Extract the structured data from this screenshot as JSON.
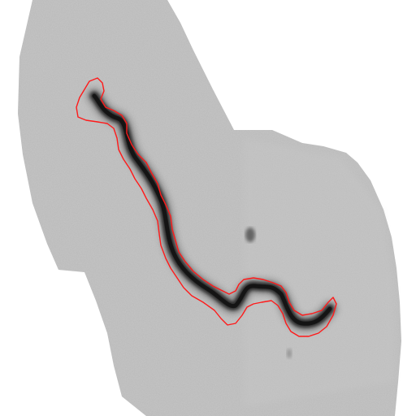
{
  "image": {
    "kind": "grayscale microscopy field with a segmented worm-like filament",
    "colors": {
      "background": "#ffffff",
      "tissue": "#b8b8b8",
      "tissue_light": "#c4c4c4",
      "filament": "#2a2a2a",
      "filament_core": "#111111",
      "outline": "#ff1a1a",
      "spot": "#555555"
    }
  }
}
